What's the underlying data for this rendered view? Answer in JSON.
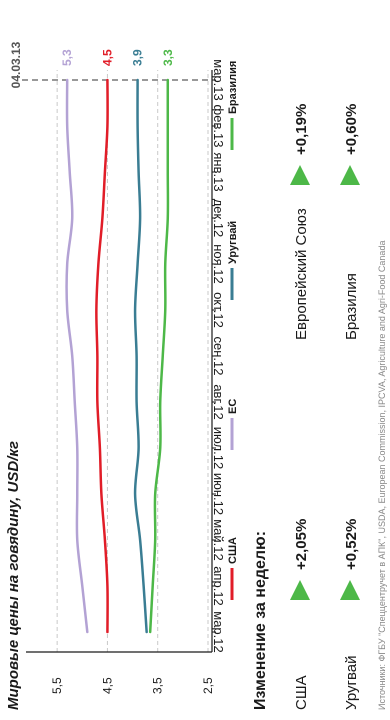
{
  "chart_data": {
    "type": "line",
    "title": "Мировые цены на говядину, USD/кг",
    "xlabel": "",
    "ylabel": "",
    "ylim": [
      2.5,
      6.0
    ],
    "y_ticks": [
      "2,5",
      "3,5",
      "4,5",
      "5,5"
    ],
    "x_tick_labels": [
      "мар.12",
      "апр.12",
      "май.12",
      "июн.12",
      "июл.12",
      "авг.12",
      "сен.12",
      "окт.12",
      "ноя.12",
      "дек.12",
      "янв.13",
      "фев.13",
      "мар.13"
    ],
    "grid": true,
    "legend_position": "left",
    "end_date_label": "04.03.13",
    "series": [
      {
        "name": "США",
        "color": "#e11d28",
        "end_label": "4,5",
        "values": [
          4.5,
          4.5,
          4.55,
          4.62,
          4.65,
          4.7,
          4.7,
          4.72,
          4.68,
          4.6,
          4.55,
          4.5,
          4.5
        ]
      },
      {
        "name": "ЕС",
        "color": "#b3a2d4",
        "end_label": "5,3",
        "values": [
          4.9,
          5.0,
          5.1,
          5.1,
          5.1,
          5.15,
          5.2,
          5.3,
          5.3,
          5.2,
          5.25,
          5.3,
          5.3
        ]
      },
      {
        "name": "Уругвай",
        "color": "#3a7d93",
        "end_label": "3,9",
        "values": [
          3.72,
          3.78,
          3.85,
          3.95,
          3.88,
          3.92,
          3.92,
          3.95,
          3.9,
          3.85,
          3.88,
          3.9,
          3.9
        ]
      },
      {
        "name": "Бразилия",
        "color": "#4db848",
        "end_label": "3,3",
        "values": [
          3.65,
          3.6,
          3.55,
          3.55,
          3.45,
          3.45,
          3.4,
          3.35,
          3.35,
          3.3,
          3.3,
          3.3,
          3.3
        ]
      }
    ]
  },
  "weekly": {
    "title": "Изменение за неделю:",
    "items": [
      {
        "region": "США",
        "change": "+2,05%",
        "color": "#4db848"
      },
      {
        "region": "Уругвай",
        "change": "+0,52%",
        "color": "#4db848"
      },
      {
        "region": "Европейский Союз",
        "change": "+0,19%",
        "color": "#4db848"
      },
      {
        "region": "Бразилия",
        "change": "+0,60%",
        "color": "#4db848"
      }
    ]
  },
  "source": "Источники: ФГБУ \"Спеццентручет в АПК\", USDA, European Commission, IPCVA, Agriculture and Agri-Food Canada"
}
